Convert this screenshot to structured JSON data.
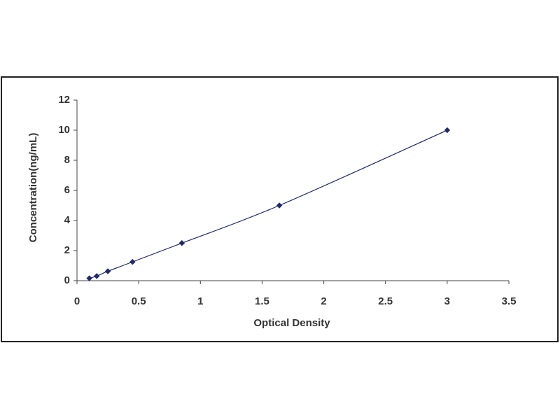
{
  "chart_data": {
    "type": "scatter",
    "x_label": "Optical Density",
    "y_label": "Concentration(ng/mL)",
    "series": [
      {
        "color": "#1f2a6e",
        "x": [
          0.1,
          0.16,
          0.25,
          0.45,
          0.85,
          1.64,
          3.0
        ],
        "values": [
          0.16,
          0.31,
          0.63,
          1.25,
          2.5,
          5,
          10
        ]
      }
    ],
    "line": true,
    "xlim": [
      0,
      3.5
    ],
    "xticks": [
      0,
      0.5,
      1,
      1.5,
      2,
      2.5,
      3,
      3.5
    ],
    "ylim": [
      0,
      12
    ],
    "yticks": [
      0,
      2,
      4,
      6,
      8,
      10,
      12
    ],
    "grid": false
  }
}
